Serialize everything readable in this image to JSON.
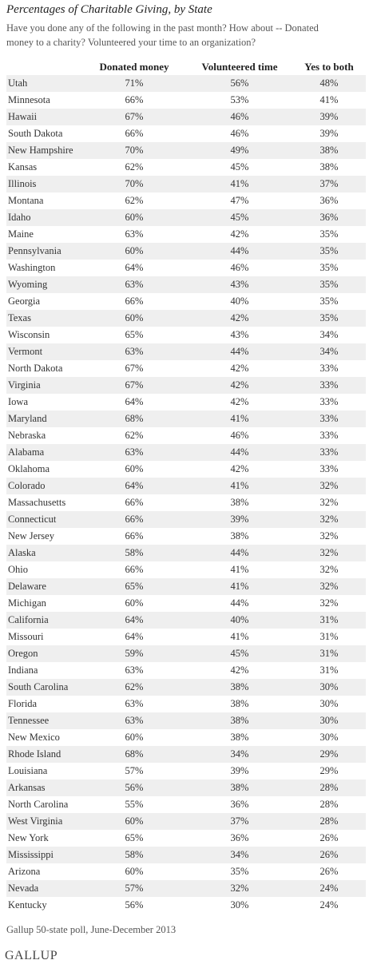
{
  "header": {
    "title": "Percentages of Charitable Giving, by State",
    "subtitle_lines": [
      "Have you done any of the following in the past month? How about -- Donated",
      "money to a charity? Volunteered your time to an organization?"
    ]
  },
  "table": {
    "columns": [
      "",
      "Donated money",
      "Volunteered time",
      "Yes to both"
    ],
    "rows": [
      [
        "Utah",
        "71%",
        "56%",
        "48%"
      ],
      [
        "Minnesota",
        "66%",
        "53%",
        "41%"
      ],
      [
        "Hawaii",
        "67%",
        "46%",
        "39%"
      ],
      [
        "South Dakota",
        "66%",
        "46%",
        "39%"
      ],
      [
        "New Hampshire",
        "70%",
        "49%",
        "38%"
      ],
      [
        "Kansas",
        "62%",
        "45%",
        "38%"
      ],
      [
        "Illinois",
        "70%",
        "41%",
        "37%"
      ],
      [
        "Montana",
        "62%",
        "47%",
        "36%"
      ],
      [
        "Idaho",
        "60%",
        "45%",
        "36%"
      ],
      [
        "Maine",
        "63%",
        "42%",
        "35%"
      ],
      [
        "Pennsylvania",
        "60%",
        "44%",
        "35%"
      ],
      [
        "Washington",
        "64%",
        "46%",
        "35%"
      ],
      [
        "Wyoming",
        "63%",
        "43%",
        "35%"
      ],
      [
        "Georgia",
        "66%",
        "40%",
        "35%"
      ],
      [
        "Texas",
        "60%",
        "42%",
        "35%"
      ],
      [
        "Wisconsin",
        "65%",
        "43%",
        "34%"
      ],
      [
        "Vermont",
        "63%",
        "44%",
        "34%"
      ],
      [
        "North Dakota",
        "67%",
        "42%",
        "33%"
      ],
      [
        "Virginia",
        "67%",
        "42%",
        "33%"
      ],
      [
        "Iowa",
        "64%",
        "42%",
        "33%"
      ],
      [
        "Maryland",
        "68%",
        "41%",
        "33%"
      ],
      [
        "Nebraska",
        "62%",
        "46%",
        "33%"
      ],
      [
        "Alabama",
        "63%",
        "44%",
        "33%"
      ],
      [
        "Oklahoma",
        "60%",
        "42%",
        "33%"
      ],
      [
        "Colorado",
        "64%",
        "41%",
        "32%"
      ],
      [
        "Massachusetts",
        "66%",
        "38%",
        "32%"
      ],
      [
        "Connecticut",
        "66%",
        "39%",
        "32%"
      ],
      [
        "New Jersey",
        "66%",
        "38%",
        "32%"
      ],
      [
        "Alaska",
        "58%",
        "44%",
        "32%"
      ],
      [
        "Ohio",
        "66%",
        "41%",
        "32%"
      ],
      [
        "Delaware",
        "65%",
        "41%",
        "32%"
      ],
      [
        "Michigan",
        "60%",
        "44%",
        "32%"
      ],
      [
        "California",
        "64%",
        "40%",
        "31%"
      ],
      [
        "Missouri",
        "64%",
        "41%",
        "31%"
      ],
      [
        "Oregon",
        "59%",
        "45%",
        "31%"
      ],
      [
        "Indiana",
        "63%",
        "42%",
        "31%"
      ],
      [
        "South Carolina",
        "62%",
        "38%",
        "30%"
      ],
      [
        "Florida",
        "63%",
        "38%",
        "30%"
      ],
      [
        "Tennessee",
        "63%",
        "38%",
        "30%"
      ],
      [
        "New Mexico",
        "60%",
        "38%",
        "30%"
      ],
      [
        "Rhode Island",
        "68%",
        "34%",
        "29%"
      ],
      [
        "Louisiana",
        "57%",
        "39%",
        "29%"
      ],
      [
        "Arkansas",
        "56%",
        "38%",
        "28%"
      ],
      [
        "North Carolina",
        "55%",
        "36%",
        "28%"
      ],
      [
        "West Virginia",
        "60%",
        "37%",
        "28%"
      ],
      [
        "New York",
        "65%",
        "36%",
        "26%"
      ],
      [
        "Mississippi",
        "58%",
        "34%",
        "26%"
      ],
      [
        "Arizona",
        "60%",
        "35%",
        "26%"
      ],
      [
        "Nevada",
        "57%",
        "32%",
        "24%"
      ],
      [
        "Kentucky",
        "56%",
        "30%",
        "24%"
      ]
    ]
  },
  "footer": {
    "source": "Gallup 50-state poll, June-December 2013",
    "logo": "GALLUP"
  }
}
